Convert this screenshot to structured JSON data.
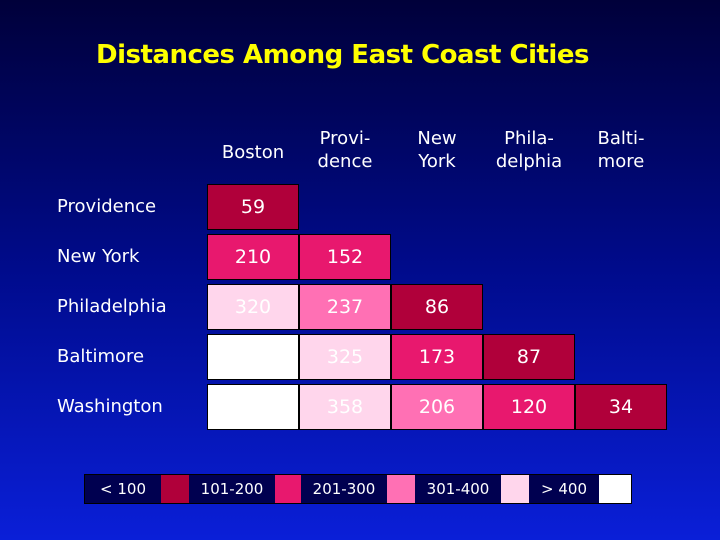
{
  "title": "Distances Among East Coast Cities",
  "columns": [
    {
      "label": "Boston"
    },
    {
      "label": "Provi-\ndence"
    },
    {
      "label": "New\nYork"
    },
    {
      "label": "Phila-\ndelphia"
    },
    {
      "label": "Balti-\nmore"
    }
  ],
  "rows": [
    {
      "label": "Providence",
      "values": [
        "59"
      ]
    },
    {
      "label": "New York",
      "values": [
        "210",
        "152"
      ]
    },
    {
      "label": "Philadelphia",
      "values": [
        "320",
        "237",
        "86"
      ]
    },
    {
      "label": "Baltimore",
      "values": [
        "",
        "325",
        "173",
        "87"
      ]
    },
    {
      "label": "Washington",
      "values": [
        "",
        "358",
        "206",
        "120",
        "34"
      ]
    }
  ],
  "legend": [
    {
      "label": "< 100",
      "color": "#b0003a"
    },
    {
      "label": "101-200",
      "color": "#e8186e"
    },
    {
      "label": "201-300",
      "color": "#ff70b4"
    },
    {
      "label": "301-400",
      "color": "#ffd6ec"
    },
    {
      "label": "> 400",
      "color": "#ffffff"
    }
  ]
}
